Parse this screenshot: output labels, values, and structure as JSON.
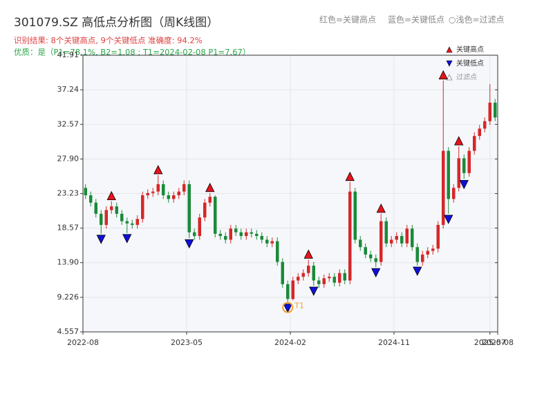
{
  "chart_data": {
    "type": "candlestick",
    "title": "301079.SZ 高低点分析图（周K线图）",
    "subtitle": "识别结果: 8个关键高点, 9个关键低点  准确度: 94.2%",
    "quality_note": "优质：是（P1=78.1%, B2=1.08 ; T1=2024-02-08 P1=7.67）",
    "top_legend": [
      "红色=关键高点",
      "蓝色=关键低点",
      "○浅色=过滤点"
    ],
    "legend": [
      "关键高点",
      "关键低点",
      "过滤点"
    ],
    "up_color": "#d62728",
    "down_color": "#1a8a3a",
    "high_color": "#e8141c",
    "low_color": "#1010d8",
    "t1_color": "#f0a030",
    "ylim": [
      4.557,
      41.91
    ],
    "yticks": [
      4.557,
      9.226,
      {
        "value": 13.9,
        "label": "13.90"
      },
      18.57,
      23.23,
      {
        "value": 27.9,
        "label": "27.90"
      },
      32.57,
      37.24,
      41.91
    ],
    "xlim": [
      0,
      80
    ],
    "xticks": [
      {
        "value": 0,
        "label": "2022-08"
      },
      {
        "value": 20,
        "label": "2023-05"
      },
      {
        "value": 40,
        "label": "2024-02"
      },
      {
        "value": 60,
        "label": "2024-11"
      },
      {
        "value": 78.5,
        "label": "2025-07"
      },
      {
        "value": 80,
        "label": "2025-08"
      }
    ],
    "grid": true,
    "candles": [
      [
        24.0,
        24.5,
        22.5,
        23.0
      ],
      [
        23.0,
        23.5,
        21.5,
        22.0
      ],
      [
        22.0,
        22.5,
        20.0,
        20.5
      ],
      [
        20.5,
        21.0,
        17.8,
        19.0
      ],
      [
        19.0,
        21.5,
        18.5,
        21.0
      ],
      [
        21.0,
        22.2,
        20.5,
        21.5
      ],
      [
        21.5,
        22.0,
        20.0,
        20.5
      ],
      [
        20.5,
        21.0,
        19.0,
        19.5
      ],
      [
        19.5,
        20.0,
        17.9,
        19.2
      ],
      [
        19.2,
        19.7,
        18.5,
        19.0
      ],
      [
        19.0,
        20.3,
        18.5,
        19.8
      ],
      [
        19.8,
        23.5,
        19.3,
        23.0
      ],
      [
        23.0,
        23.8,
        22.5,
        23.3
      ],
      [
        23.3,
        24.0,
        22.8,
        23.5
      ],
      [
        23.5,
        25.7,
        23.0,
        24.5
      ],
      [
        24.5,
        25.0,
        22.5,
        23.0
      ],
      [
        23.0,
        23.5,
        22.0,
        22.5
      ],
      [
        22.5,
        23.5,
        22.0,
        23.0
      ],
      [
        23.0,
        24.0,
        22.5,
        23.5
      ],
      [
        23.5,
        25.0,
        23.0,
        24.5
      ],
      [
        24.5,
        25.0,
        17.2,
        18.0
      ],
      [
        18.0,
        18.5,
        17.0,
        17.5
      ],
      [
        17.5,
        20.5,
        17.0,
        20.0
      ],
      [
        20.0,
        22.5,
        19.5,
        22.0
      ],
      [
        22.0,
        23.3,
        21.5,
        22.8
      ],
      [
        22.8,
        23.0,
        17.3,
        17.8
      ],
      [
        17.8,
        18.3,
        17.0,
        17.5
      ],
      [
        17.5,
        18.0,
        16.5,
        17.0
      ],
      [
        17.0,
        19.0,
        16.5,
        18.5
      ],
      [
        18.5,
        19.0,
        17.5,
        18.0
      ],
      [
        18.0,
        18.5,
        17.0,
        17.5
      ],
      [
        17.5,
        18.5,
        17.0,
        18.0
      ],
      [
        18.0,
        18.5,
        17.3,
        17.8
      ],
      [
        17.8,
        18.3,
        17.0,
        17.5
      ],
      [
        17.5,
        18.0,
        16.5,
        17.0
      ],
      [
        17.0,
        17.5,
        16.0,
        16.5
      ],
      [
        16.5,
        17.3,
        16.0,
        16.8
      ],
      [
        16.8,
        17.3,
        13.5,
        14.0
      ],
      [
        14.0,
        14.5,
        10.5,
        11.0
      ],
      [
        11.0,
        11.5,
        8.5,
        9.0
      ],
      [
        9.0,
        12.0,
        8.8,
        11.5
      ],
      [
        11.5,
        12.5,
        11.0,
        12.0
      ],
      [
        12.0,
        13.0,
        11.5,
        12.5
      ],
      [
        12.5,
        14.3,
        12.0,
        13.5
      ],
      [
        13.5,
        14.0,
        10.8,
        11.5
      ],
      [
        11.5,
        12.0,
        10.5,
        11.0
      ],
      [
        11.0,
        12.3,
        10.5,
        11.8
      ],
      [
        11.8,
        12.5,
        11.3,
        12.0
      ],
      [
        12.0,
        12.5,
        10.7,
        11.2
      ],
      [
        11.2,
        13.0,
        10.7,
        12.5
      ],
      [
        12.5,
        13.0,
        11.0,
        11.5
      ],
      [
        11.5,
        24.8,
        11.0,
        23.5
      ],
      [
        23.5,
        24.0,
        16.5,
        17.0
      ],
      [
        17.0,
        17.5,
        15.5,
        16.0
      ],
      [
        16.0,
        16.5,
        14.5,
        15.0
      ],
      [
        15.0,
        15.5,
        14.0,
        14.5
      ],
      [
        14.5,
        15.0,
        13.3,
        14.0
      ],
      [
        14.0,
        20.5,
        13.5,
        19.5
      ],
      [
        19.5,
        20.0,
        16.0,
        16.5
      ],
      [
        16.5,
        17.5,
        16.0,
        17.0
      ],
      [
        17.0,
        18.0,
        16.5,
        17.5
      ],
      [
        17.5,
        18.0,
        16.0,
        16.5
      ],
      [
        16.5,
        19.0,
        16.0,
        18.5
      ],
      [
        18.5,
        19.0,
        15.5,
        16.0
      ],
      [
        16.0,
        16.5,
        13.5,
        14.0
      ],
      [
        14.0,
        15.5,
        13.5,
        15.0
      ],
      [
        15.0,
        16.0,
        14.5,
        15.5
      ],
      [
        15.5,
        16.3,
        15.0,
        15.8
      ],
      [
        15.8,
        19.5,
        15.3,
        19.0
      ],
      [
        19.0,
        38.5,
        18.5,
        29.0
      ],
      [
        29.0,
        29.5,
        20.5,
        22.5
      ],
      [
        22.5,
        24.5,
        22.0,
        24.0
      ],
      [
        24.0,
        29.6,
        23.5,
        28.0
      ],
      [
        28.0,
        28.5,
        25.2,
        26.0
      ],
      [
        26.0,
        29.5,
        25.5,
        29.0
      ],
      [
        29.0,
        31.5,
        28.5,
        31.0
      ],
      [
        31.0,
        32.5,
        30.5,
        32.0
      ],
      [
        32.0,
        33.5,
        31.5,
        33.0
      ],
      [
        33.0,
        38.0,
        32.5,
        35.5
      ],
      [
        35.5,
        36.0,
        33.0,
        33.5
      ]
    ],
    "key_highs": [
      5,
      14,
      24,
      43,
      51,
      57,
      69,
      72
    ],
    "key_lows": [
      3,
      8,
      20,
      39,
      44,
      56,
      64,
      70,
      73
    ],
    "t1_index": 39,
    "t1_label": "T1"
  }
}
